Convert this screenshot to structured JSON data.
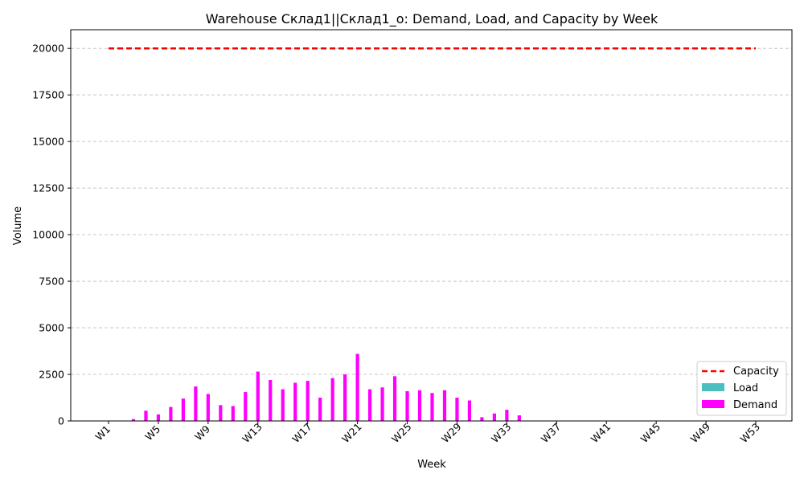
{
  "chart_data": {
    "type": "bar",
    "title": "Warehouse Склад1||Склад1_о: Demand, Load, and Capacity by Week",
    "xlabel": "Week",
    "ylabel": "Volume",
    "ylim": [
      0,
      21000
    ],
    "yticks": [
      0,
      2500,
      5000,
      7500,
      10000,
      12500,
      15000,
      17500,
      20000
    ],
    "xtick_labels": [
      "W1",
      "W5",
      "W9",
      "W13",
      "W17",
      "W21",
      "W25",
      "W29",
      "W33",
      "W37",
      "W41",
      "W45",
      "W49",
      "W53"
    ],
    "grid": "y-dashed",
    "legend_position": "lower-right",
    "colors": {
      "capacity": "#ff0000",
      "load": "#4bbfbf",
      "demand": "#ff00ff"
    },
    "legend": [
      "Capacity",
      "Load",
      "Demand"
    ],
    "weeks": [
      "W1",
      "W2",
      "W3",
      "W4",
      "W5",
      "W6",
      "W7",
      "W8",
      "W9",
      "W10",
      "W11",
      "W12",
      "W13",
      "W14",
      "W15",
      "W16",
      "W17",
      "W18",
      "W19",
      "W20",
      "W21",
      "W22",
      "W23",
      "W24",
      "W25",
      "W26",
      "W27",
      "W28",
      "W29",
      "W30",
      "W31",
      "W32",
      "W33",
      "W34",
      "W35",
      "W36",
      "W37",
      "W38",
      "W39",
      "W40",
      "W41",
      "W42",
      "W43",
      "W44",
      "W45",
      "W46",
      "W47",
      "W48",
      "W49",
      "W50",
      "W51",
      "W52",
      "W53"
    ],
    "series": [
      {
        "name": "Capacity",
        "kind": "line",
        "values": [
          20000,
          20000,
          20000,
          20000,
          20000,
          20000,
          20000,
          20000,
          20000,
          20000,
          20000,
          20000,
          20000,
          20000,
          20000,
          20000,
          20000,
          20000,
          20000,
          20000,
          20000,
          20000,
          20000,
          20000,
          20000,
          20000,
          20000,
          20000,
          20000,
          20000,
          20000,
          20000,
          20000,
          20000,
          20000,
          20000,
          20000,
          20000,
          20000,
          20000,
          20000,
          20000,
          20000,
          20000,
          20000,
          20000,
          20000,
          20000,
          20000,
          20000,
          20000,
          20000,
          20000
        ]
      },
      {
        "name": "Load",
        "kind": "bar",
        "values": [
          0,
          0,
          0,
          0,
          0,
          0,
          0,
          0,
          0,
          0,
          0,
          0,
          0,
          0,
          0,
          0,
          0,
          0,
          0,
          0,
          0,
          0,
          0,
          0,
          0,
          0,
          0,
          0,
          0,
          0,
          0,
          0,
          0,
          0,
          0,
          0,
          0,
          0,
          0,
          0,
          0,
          0,
          0,
          0,
          0,
          0,
          0,
          0,
          0,
          0,
          0,
          0,
          0
        ]
      },
      {
        "name": "Demand",
        "kind": "bar",
        "values": [
          0,
          0,
          100,
          550,
          350,
          750,
          1200,
          1850,
          1450,
          850,
          800,
          1550,
          2650,
          2200,
          1700,
          2050,
          2150,
          1250,
          2300,
          2500,
          3600,
          1700,
          1800,
          2400,
          1600,
          1650,
          1500,
          1650,
          1250,
          1100,
          200,
          400,
          600,
          300,
          0,
          0,
          0,
          0,
          0,
          0,
          0,
          0,
          0,
          0,
          0,
          0,
          0,
          0,
          0,
          0,
          0,
          0,
          0
        ]
      }
    ]
  }
}
